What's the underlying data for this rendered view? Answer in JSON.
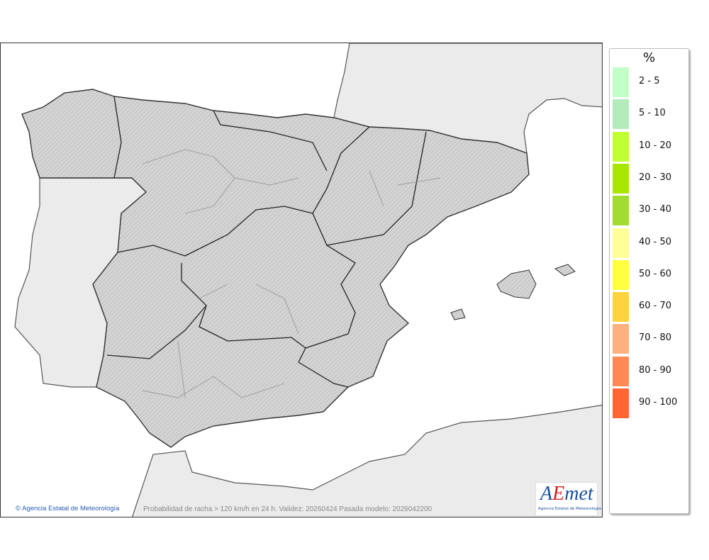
{
  "map": {
    "caption": "Probabilidad de racha > 120 km/h en 24 h. Validez: 20260424 Pasada modelo: 2026042200",
    "copyright": "Agencia Estatal de Meteorología",
    "copyright_icon": "copyright-icon",
    "colors": {
      "sea": "#ffffff",
      "land_foreign": "#ebebeb",
      "land_spain": "#d2d2d2",
      "border": "#333333",
      "region_border": "#9a9a9a"
    }
  },
  "logo": {
    "text_a": "A",
    "text_e": "E",
    "text_met": "met",
    "subtitle": "Agencia Estatal de Meteorología"
  },
  "legend": {
    "title": "%",
    "items": [
      {
        "label": "2 - 5",
        "color": "#c2ffc6"
      },
      {
        "label": "5 - 10",
        "color": "#b3ebbb"
      },
      {
        "label": "10 - 20",
        "color": "#c0ff33"
      },
      {
        "label": "20 - 30",
        "color": "#a8e600"
      },
      {
        "label": "30 - 40",
        "color": "#a2dc33"
      },
      {
        "label": "40 - 50",
        "color": "#ffff99"
      },
      {
        "label": "50 - 60",
        "color": "#ffff40"
      },
      {
        "label": "60 - 70",
        "color": "#ffd23f"
      },
      {
        "label": "70 - 80",
        "color": "#ffb080"
      },
      {
        "label": "80 - 90",
        "color": "#ff8a55"
      },
      {
        "label": "90 - 100",
        "color": "#ff6633"
      }
    ]
  }
}
